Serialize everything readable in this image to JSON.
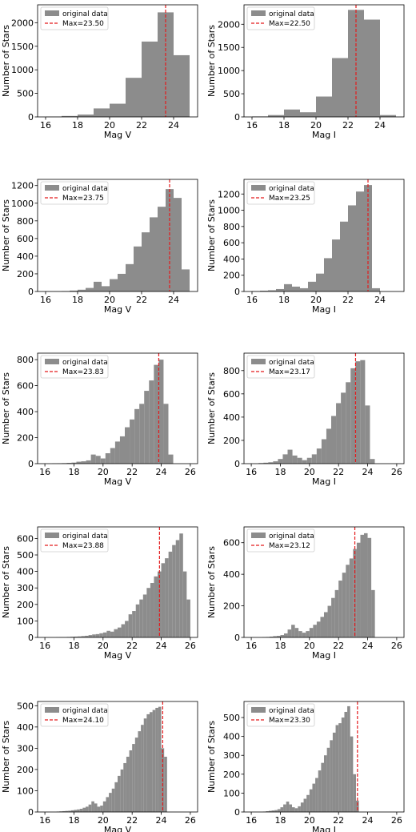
{
  "chart_data": [
    {
      "type": "bar",
      "xlabel": "Mag V",
      "ylabel": "Number of Stars",
      "xlim": [
        15.5,
        25.5
      ],
      "ylim": [
        0,
        2380
      ],
      "xticks": [
        16,
        18,
        20,
        22,
        24
      ],
      "yticks": [
        0,
        500,
        1000,
        1500,
        2000
      ],
      "bin_width": 1.0,
      "bin_edges_start": 16,
      "values": [
        5,
        20,
        50,
        180,
        280,
        830,
        1600,
        2220,
        1310
      ],
      "max_line": 23.5,
      "legend": {
        "hist": "original data",
        "line": "Max=23.50"
      }
    },
    {
      "type": "bar",
      "xlabel": "Mag I",
      "ylabel": "Number of Stars",
      "xlim": [
        15.5,
        25.5
      ],
      "ylim": [
        0,
        2420
      ],
      "xticks": [
        16,
        18,
        20,
        22,
        24
      ],
      "yticks": [
        0,
        500,
        1000,
        1500,
        2000
      ],
      "bin_width": 1.0,
      "bin_edges_start": 16,
      "values": [
        10,
        40,
        160,
        100,
        440,
        1270,
        2310,
        2100,
        40
      ],
      "max_line": 22.5,
      "legend": {
        "hist": "original data",
        "line": "Max=22.50"
      }
    },
    {
      "type": "bar",
      "xlabel": "Mag V",
      "ylabel": "Number of Stars",
      "xlim": [
        15.5,
        25.5
      ],
      "ylim": [
        0,
        1270
      ],
      "xticks": [
        16,
        18,
        20,
        22,
        24
      ],
      "yticks": [
        0,
        200,
        400,
        600,
        800,
        1000,
        1200
      ],
      "bin_width": 0.5,
      "bin_edges_start": 16,
      "values": [
        2,
        3,
        5,
        10,
        20,
        40,
        110,
        60,
        140,
        200,
        310,
        510,
        670,
        840,
        960,
        1160,
        1060,
        250
      ],
      "max_line": 23.75,
      "legend": {
        "hist": "original data",
        "line": "Max=23.75"
      }
    },
    {
      "type": "bar",
      "xlabel": "Mag I",
      "ylabel": "Number of Stars",
      "xlim": [
        15.5,
        25.5
      ],
      "ylim": [
        0,
        1380
      ],
      "xticks": [
        16,
        18,
        20,
        22,
        24
      ],
      "yticks": [
        0,
        200,
        400,
        600,
        800,
        1000,
        1200
      ],
      "bin_width": 0.5,
      "bin_edges_start": 16,
      "values": [
        5,
        10,
        15,
        30,
        90,
        60,
        40,
        120,
        220,
        410,
        640,
        860,
        1060,
        1230,
        1310,
        40
      ],
      "max_line": 23.25,
      "legend": {
        "hist": "original data",
        "line": "Max=23.25"
      }
    },
    {
      "type": "bar",
      "xlabel": "Mag V",
      "ylabel": "Number of Stars",
      "xlim": [
        15.5,
        26.5
      ],
      "ylim": [
        0,
        850
      ],
      "xticks": [
        16,
        18,
        20,
        22,
        24,
        26
      ],
      "yticks": [
        0,
        200,
        400,
        600,
        800
      ],
      "bin_width": 0.333,
      "bin_edges_start": 16.5,
      "values": [
        2,
        3,
        4,
        6,
        8,
        15,
        18,
        25,
        70,
        60,
        40,
        80,
        120,
        170,
        210,
        280,
        340,
        420,
        460,
        560,
        640,
        760,
        800,
        460,
        70
      ],
      "max_line": 23.83,
      "legend": {
        "hist": "original data",
        "line": "Max=23.83"
      }
    },
    {
      "type": "bar",
      "xlabel": "Mag I",
      "ylabel": "Number of Stars",
      "xlim": [
        15.5,
        26.5
      ],
      "ylim": [
        0,
        950
      ],
      "xticks": [
        16,
        18,
        20,
        22,
        24,
        26
      ],
      "yticks": [
        0,
        200,
        400,
        600,
        800
      ],
      "bin_width": 0.333,
      "bin_edges_start": 16.5,
      "values": [
        5,
        8,
        12,
        20,
        40,
        80,
        120,
        70,
        50,
        30,
        50,
        80,
        130,
        210,
        300,
        410,
        520,
        610,
        700,
        820,
        880,
        890,
        500,
        40
      ],
      "max_line": 23.17,
      "legend": {
        "hist": "original data",
        "line": "Max=23.17"
      }
    },
    {
      "type": "bar",
      "xlabel": "Mag V",
      "ylabel": "Number of Stars",
      "xlim": [
        15.5,
        26.5
      ],
      "ylim": [
        0,
        670
      ],
      "xticks": [
        16,
        18,
        20,
        22,
        24,
        26
      ],
      "yticks": [
        0,
        100,
        200,
        300,
        400,
        500,
        600
      ],
      "bin_width": 0.25,
      "bin_edges_start": 16.75,
      "values": [
        1,
        2,
        2,
        3,
        4,
        5,
        6,
        8,
        10,
        14,
        18,
        20,
        25,
        30,
        40,
        35,
        50,
        60,
        80,
        100,
        140,
        160,
        200,
        230,
        260,
        300,
        330,
        370,
        400,
        450,
        480,
        520,
        560,
        590,
        630,
        400,
        230
      ],
      "max_line": 23.88,
      "legend": {
        "hist": "original data",
        "line": "Max=23.88"
      }
    },
    {
      "type": "bar",
      "xlabel": "Mag I",
      "ylabel": "Number of Stars",
      "xlim": [
        15.5,
        26.5
      ],
      "ylim": [
        0,
        700
      ],
      "xticks": [
        16,
        18,
        20,
        22,
        24,
        26
      ],
      "yticks": [
        0,
        200,
        400,
        600
      ],
      "bin_width": 0.25,
      "bin_edges_start": 16.75,
      "values": [
        2,
        3,
        5,
        8,
        10,
        15,
        25,
        50,
        80,
        60,
        40,
        30,
        40,
        60,
        80,
        100,
        130,
        160,
        200,
        250,
        300,
        360,
        410,
        460,
        500,
        560,
        600,
        650,
        660,
        630,
        300
      ],
      "max_line": 23.12,
      "legend": {
        "hist": "original data",
        "line": "Max=23.12"
      }
    },
    {
      "type": "bar",
      "xlabel": "Mag V",
      "ylabel": "Number of Stars",
      "xlim": [
        15.5,
        26.5
      ],
      "ylim": [
        0,
        520
      ],
      "xticks": [
        16,
        18,
        20,
        22,
        24,
        26
      ],
      "yticks": [
        0,
        100,
        200,
        300,
        400,
        500
      ],
      "bin_width": 0.2,
      "bin_edges_start": 16.8,
      "values": [
        2,
        3,
        4,
        5,
        6,
        8,
        10,
        12,
        15,
        20,
        25,
        35,
        50,
        40,
        25,
        30,
        50,
        70,
        90,
        110,
        140,
        170,
        200,
        230,
        260,
        290,
        320,
        350,
        380,
        410,
        440,
        460,
        470,
        480,
        490,
        495,
        300,
        260
      ],
      "max_line": 24.1,
      "legend": {
        "hist": "original data",
        "line": "Max=24.10"
      }
    },
    {
      "type": "bar",
      "xlabel": "Mag I",
      "ylabel": "Number of Stars",
      "xlim": [
        15.5,
        26.5
      ],
      "ylim": [
        0,
        585
      ],
      "xticks": [
        16,
        18,
        20,
        22,
        24,
        26
      ],
      "yticks": [
        0,
        100,
        200,
        300,
        400,
        500
      ],
      "bin_width": 0.2,
      "bin_edges_start": 16.8,
      "values": [
        2,
        4,
        6,
        8,
        10,
        15,
        25,
        40,
        55,
        40,
        25,
        20,
        30,
        50,
        70,
        90,
        120,
        150,
        180,
        220,
        260,
        300,
        340,
        380,
        420,
        460,
        470,
        500,
        530,
        560,
        400,
        200,
        60
      ],
      "max_line": 23.3,
      "legend": {
        "hist": "original data",
        "line": "Max=23.30"
      }
    }
  ]
}
